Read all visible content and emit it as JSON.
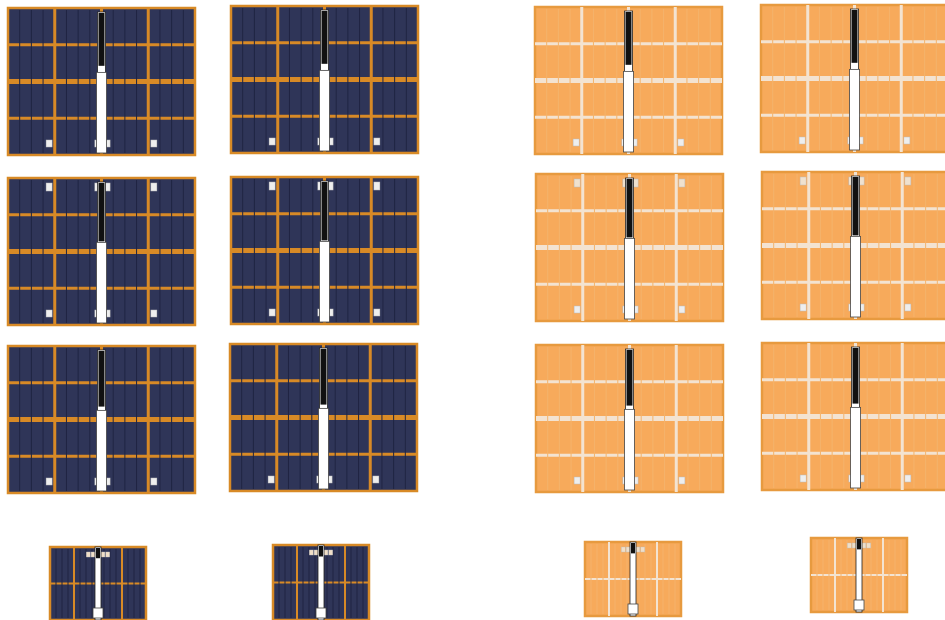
{
  "palette": {
    "background": "#ffffff",
    "dark_panel_fill": "#2f3558",
    "dark_panel_frame": "#d88a26",
    "light_panel_fill": "#f7aa5b",
    "light_panel_frame": "#e79a3f",
    "light_panel_grid": "#f3e3d1",
    "slider_track_fill": "#ffffff",
    "slider_track_border": "#222222",
    "slider_fill": "#111111",
    "slider_thumb_fill": "#ffffff",
    "slider_thumb_border": "#444444",
    "marker_fill": "#eeeeee",
    "marker_border": "#bbbbbb"
  },
  "groups": [
    {
      "name": "dark-panels",
      "panel_style": "dark",
      "count": 8
    },
    {
      "name": "light-panels",
      "panel_style": "light",
      "count": 8
    }
  ],
  "slider_levels": {
    "row_1": 0.38,
    "row_2": 0.42,
    "row_3": 0.4,
    "row_4": 0.14
  }
}
